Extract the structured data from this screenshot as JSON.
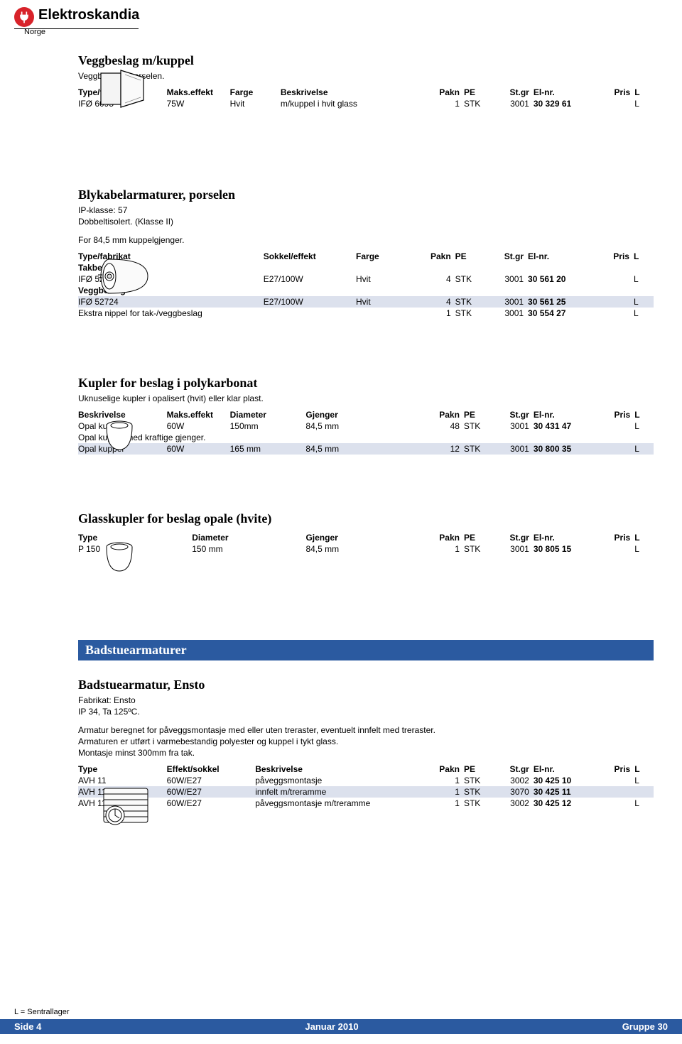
{
  "brand": {
    "name": "Elektroskandia",
    "country": "Norge"
  },
  "common_headers": {
    "type_fabrikat": "Type/fabrikat",
    "maks_effekt": "Maks.effekt",
    "sokkel_effekt": "Sokkel/effekt",
    "effekt_sokkel": "Effekt/sokkel",
    "farge": "Farge",
    "beskrivelse": "Beskrivelse",
    "diameter": "Diameter",
    "gjenger": "Gjenger",
    "pakn": "Pakn",
    "pe": "PE",
    "stgr": "St.gr",
    "elnr": "El-nr.",
    "pris": "Pris",
    "l": "L",
    "type": "Type"
  },
  "sections": {
    "s1": {
      "title": "Veggbeslag m/kuppel",
      "sub": "Veggbeslag i porselen.",
      "rows": [
        {
          "c0": "IFØ 6095",
          "c1": "75W",
          "c2": "Hvit",
          "c3": "m/kuppel i hvit glass",
          "c4": "1",
          "c5": "STK",
          "c6": "3001",
          "c7": "30 329 61",
          "c8": "",
          "c9": "L"
        }
      ]
    },
    "s2": {
      "title": "Blykabelarmaturer, porselen",
      "sub1": "IP-klasse: 57",
      "sub2": "Dobbeltisolert. (Klasse II)",
      "sub3": "For 84,5 mm kuppelgjenger.",
      "group1": "Takbeslag",
      "group2": "Veggbeslag",
      "rows_g1": [
        {
          "c0": "IFØ 52721-10",
          "c1": "E27/100W",
          "c2": "Hvit",
          "c3": "4",
          "c4": "STK",
          "c5": "3001",
          "c6": "30 561 20",
          "c7": "",
          "c8": "L"
        }
      ],
      "rows_g2": [
        {
          "shade": true,
          "c0": "IFØ 52724",
          "c1": "E27/100W",
          "c2": "Hvit",
          "c3": "4",
          "c4": "STK",
          "c5": "3001",
          "c6": "30 561 25",
          "c7": "",
          "c8": "L"
        },
        {
          "c0": "Ekstra nippel for tak-/veggbeslag",
          "c1": "",
          "c2": "",
          "c3": "1",
          "c4": "STK",
          "c5": "3001",
          "c6": "30 554 27",
          "c7": "",
          "c8": "L"
        }
      ]
    },
    "s3": {
      "title": "Kupler for beslag i polykarbonat",
      "sub": "Uknuselige kupler i opalisert (hvit) eller klar plast.",
      "group2": "Opal kuppel med kraftige gjenger.",
      "rows_a": [
        {
          "c0": "Opal kuppel",
          "c1": "60W",
          "c2": "150mm",
          "c3": "84,5 mm",
          "c4": "48",
          "c5": "STK",
          "c6": "3001",
          "c7": "30 431 47",
          "c8": "",
          "c9": "L"
        }
      ],
      "rows_b": [
        {
          "shade": true,
          "c0": "Opal kuppel",
          "c1": "60W",
          "c2": "165 mm",
          "c3": "84,5 mm",
          "c4": "12",
          "c5": "STK",
          "c6": "3001",
          "c7": "30 800 35",
          "c8": "",
          "c9": "L"
        }
      ]
    },
    "s4": {
      "title": "Glasskupler for beslag opale (hvite)",
      "rows": [
        {
          "c0": "P 150",
          "c1": "150 mm",
          "c2": "84,5 mm",
          "c3": "1",
          "c4": "STK",
          "c5": "3001",
          "c6": "30 805 15",
          "c7": "",
          "c8": "L"
        }
      ]
    },
    "bluebar": "Badstuearmaturer",
    "s5": {
      "title": "Badstuearmatur, Ensto",
      "sub1": "Fabrikat: Ensto",
      "sub2": "IP 34, Ta 125ºC.",
      "desc1": "Armatur beregnet for påveggsmontasje med eller uten treraster, eventuelt innfelt med treraster.",
      "desc2": "Armaturen er utført i varmebestandig polyester og kuppel i tykt glass.",
      "desc3": "Montasje minst 300mm fra tak.",
      "rows": [
        {
          "c0": "AVH 11",
          "c1": "60W/E27",
          "c2": "påveggsmontasje",
          "c3": "1",
          "c4": "STK",
          "c5": "3002",
          "c6": "30 425 10",
          "c7": "",
          "c8": "L"
        },
        {
          "shade": true,
          "c0": "AVH 11.1",
          "c1": "60W/E27",
          "c2": "innfelt m/treramme",
          "c3": "1",
          "c4": "STK",
          "c5": "3070",
          "c6": "30 425 11",
          "c7": "",
          "c8": ""
        },
        {
          "c0": "AVH 11.2",
          "c1": "60W/E27",
          "c2": "påveggsmontasje m/treramme",
          "c3": "1",
          "c4": "STK",
          "c5": "3002",
          "c6": "30 425 12",
          "c7": "",
          "c8": "L"
        }
      ]
    }
  },
  "footer": {
    "note": "L = Sentrallager",
    "left": "Side  4",
    "center": "Januar 2010",
    "right": "Gruppe 30"
  },
  "layout": {
    "colwidths_10": [
      "14%",
      "10%",
      "8%",
      "24%",
      "5%",
      "5%",
      "6%",
      "10%",
      "6%",
      "3%"
    ],
    "colwidths_9": [
      "28%",
      "14%",
      "10%",
      "5%",
      "5%",
      "6%",
      "10%",
      "6%",
      "3%"
    ],
    "colwidths_s3": [
      "14%",
      "10%",
      "12%",
      "20%",
      "5%",
      "5%",
      "6%",
      "10%",
      "6%",
      "3%"
    ],
    "colwidths_s4": [
      "18%",
      "18%",
      "20%",
      "5%",
      "5%",
      "6%",
      "10%",
      "6%",
      "3%"
    ],
    "colwidths_s5": [
      "14%",
      "14%",
      "28%",
      "5%",
      "5%",
      "6%",
      "10%",
      "6%",
      "3%"
    ]
  }
}
